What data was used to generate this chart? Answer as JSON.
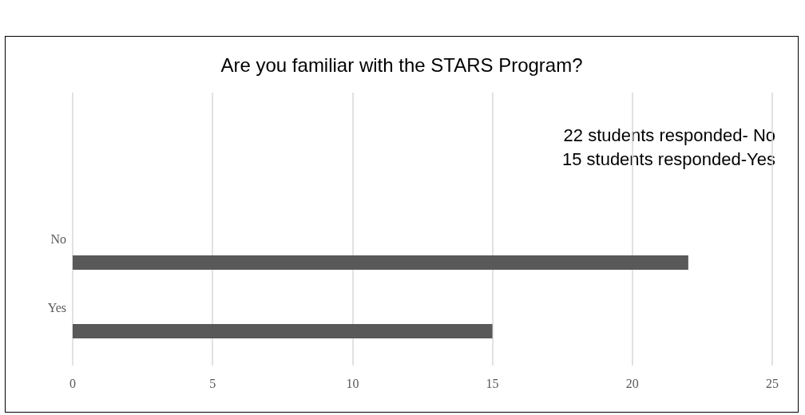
{
  "chart_data": {
    "type": "bar",
    "orientation": "horizontal",
    "title": "Are you familiar with the STARS Program?",
    "categories": [
      "No",
      "Yes"
    ],
    "values": [
      22,
      15
    ],
    "color": "#595959",
    "xlim": [
      0,
      25
    ],
    "xticks": [
      0,
      5,
      10,
      15,
      20,
      25
    ],
    "grid": "x",
    "annotations": [
      "22 students responded- No",
      "15 students responded-Yes"
    ]
  }
}
